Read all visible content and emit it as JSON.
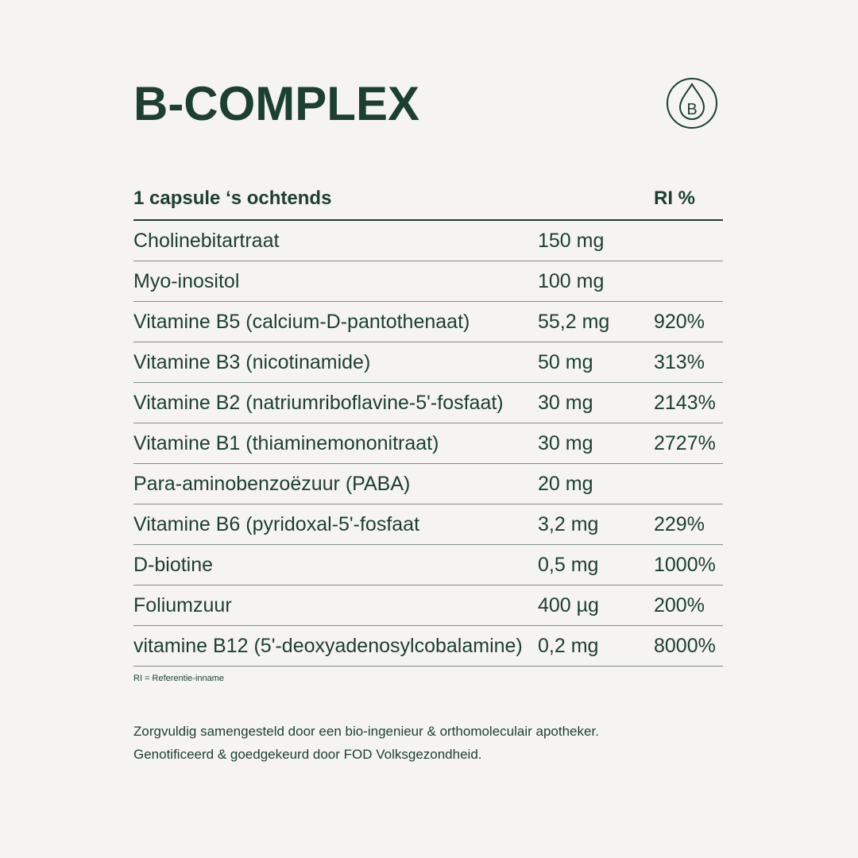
{
  "title": "B-COMPLEX",
  "icon": "vitamin-b-drop-icon",
  "colors": {
    "text": "#1d3f31",
    "background": "#f5f4f0"
  },
  "table": {
    "header": {
      "dose": "1 capsule ‘s ochtends",
      "ri": "RI %"
    },
    "rows": [
      {
        "name": "Cholinebitartraat",
        "amount": "150 mg",
        "ri": ""
      },
      {
        "name": "Myo-inositol",
        "amount": "100 mg",
        "ri": ""
      },
      {
        "name": "Vitamine B5 (calcium-D-pantothenaat)",
        "amount": "55,2 mg",
        "ri": "920%"
      },
      {
        "name": "Vitamine B3 (nicotinamide)",
        "amount": "50 mg",
        "ri": "313%"
      },
      {
        "name": "Vitamine B2 (natriumriboflavine-5'-fosfaat)",
        "amount": "30 mg",
        "ri": "2143%"
      },
      {
        "name": "Vitamine B1 (thiaminemononitraat)",
        "amount": "30 mg",
        "ri": "2727%"
      },
      {
        "name": "Para-aminobenzoëzuur (PABA)",
        "amount": "20 mg",
        "ri": ""
      },
      {
        "name": "Vitamine B6 (pyridoxal-5'-fosfaat",
        "amount": "3,2 mg",
        "ri": "229%"
      },
      {
        "name": "D-biotine",
        "amount": "0,5 mg",
        "ri": "1000%"
      },
      {
        "name": "Foliumzuur",
        "amount": "400 µg",
        "ri": "200%"
      },
      {
        "name": "vitamine B12 (5'-deoxyadenosylcobalamine)",
        "amount": "0,2 mg",
        "ri": "8000%"
      }
    ]
  },
  "note": "RI = Referentie-inname",
  "footer": [
    "Zorgvuldig samengesteld door een bio-ingenieur & orthomoleculair apotheker.",
    "Genotificeerd & goedgekeurd door FOD Volksgezondheid."
  ]
}
